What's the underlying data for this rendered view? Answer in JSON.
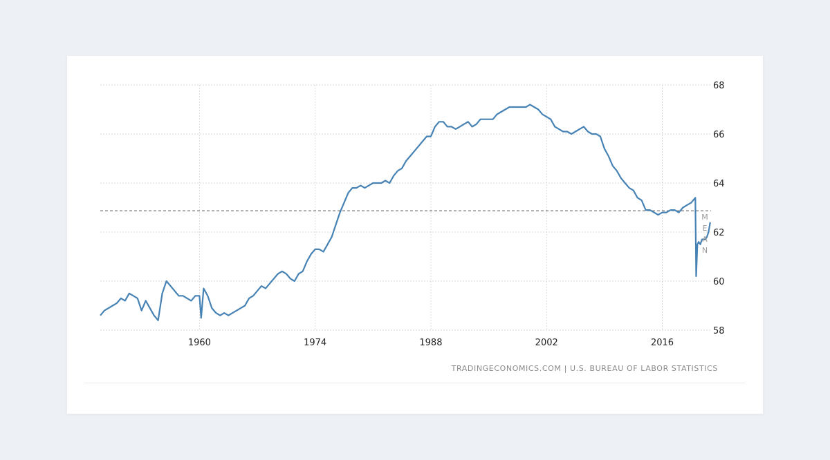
{
  "chart_data": {
    "type": "line",
    "title": "",
    "xlabel": "",
    "ylabel": "",
    "xlim": [
      1948,
      2021.9
    ],
    "ylim": [
      58,
      68
    ],
    "x_ticks": [
      1960,
      1974,
      1988,
      2002,
      2016
    ],
    "x_tick_labels": [
      "1960",
      "1974",
      "1988",
      "2002",
      "2016"
    ],
    "y_ticks": [
      58,
      60,
      62,
      64,
      66,
      68
    ],
    "y_tick_labels": [
      "58",
      "60",
      "62",
      "64",
      "66",
      "68"
    ],
    "grid": true,
    "y_axis_side": "right",
    "series": [
      {
        "color": "#4682b4",
        "x": [
          1948.0,
          1948.5,
          1949.0,
          1949.5,
          1950.0,
          1950.5,
          1951.0,
          1951.5,
          1952.0,
          1952.5,
          1953.0,
          1953.5,
          1954.0,
          1954.5,
          1955.0,
          1955.5,
          1956.0,
          1956.5,
          1957.0,
          1957.5,
          1958.0,
          1958.5,
          1959.0,
          1959.5,
          1960.0,
          1960.2,
          1960.5,
          1961.0,
          1961.5,
          1962.0,
          1962.5,
          1963.0,
          1963.5,
          1964.0,
          1964.5,
          1965.0,
          1965.5,
          1966.0,
          1966.5,
          1967.0,
          1967.5,
          1968.0,
          1968.5,
          1969.0,
          1969.5,
          1970.0,
          1970.5,
          1971.0,
          1971.5,
          1972.0,
          1972.5,
          1973.0,
          1973.5,
          1974.0,
          1974.5,
          1975.0,
          1975.5,
          1976.0,
          1976.5,
          1977.0,
          1977.5,
          1978.0,
          1978.5,
          1979.0,
          1979.5,
          1980.0,
          1980.5,
          1981.0,
          1981.5,
          1982.0,
          1982.5,
          1983.0,
          1983.5,
          1984.0,
          1984.5,
          1985.0,
          1985.5,
          1986.0,
          1986.5,
          1987.0,
          1987.5,
          1988.0,
          1988.5,
          1989.0,
          1989.5,
          1990.0,
          1990.5,
          1991.0,
          1991.5,
          1992.0,
          1992.5,
          1993.0,
          1993.5,
          1994.0,
          1994.5,
          1995.0,
          1995.5,
          1996.0,
          1996.5,
          1997.0,
          1997.5,
          1998.0,
          1998.5,
          1999.0,
          1999.5,
          2000.0,
          2000.5,
          2001.0,
          2001.5,
          2002.0,
          2002.5,
          2003.0,
          2003.5,
          2004.0,
          2004.5,
          2005.0,
          2005.5,
          2006.0,
          2006.5,
          2007.0,
          2007.5,
          2008.0,
          2008.5,
          2009.0,
          2009.5,
          2010.0,
          2010.5,
          2011.0,
          2011.5,
          2012.0,
          2012.5,
          2013.0,
          2013.5,
          2014.0,
          2014.5,
          2015.0,
          2015.5,
          2016.0,
          2016.5,
          2017.0,
          2017.5,
          2018.0,
          2018.5,
          2019.0,
          2019.5,
          2020.0,
          2020.1,
          2020.25,
          2020.4,
          2020.6,
          2020.8,
          2021.0,
          2021.2,
          2021.4,
          2021.6,
          2021.8
        ],
        "values": [
          58.6,
          58.8,
          58.9,
          59.0,
          59.1,
          59.3,
          59.2,
          59.5,
          59.4,
          59.3,
          58.8,
          59.2,
          58.9,
          58.6,
          58.4,
          59.5,
          60.0,
          59.8,
          59.6,
          59.4,
          59.4,
          59.3,
          59.2,
          59.4,
          59.4,
          58.5,
          59.7,
          59.4,
          58.9,
          58.7,
          58.6,
          58.7,
          58.6,
          58.7,
          58.8,
          58.9,
          59.0,
          59.3,
          59.4,
          59.6,
          59.8,
          59.7,
          59.9,
          60.1,
          60.3,
          60.4,
          60.3,
          60.1,
          60.0,
          60.3,
          60.4,
          60.8,
          61.1,
          61.3,
          61.3,
          61.2,
          61.5,
          61.8,
          62.3,
          62.8,
          63.2,
          63.6,
          63.8,
          63.8,
          63.9,
          63.8,
          63.9,
          64.0,
          64.0,
          64.0,
          64.1,
          64.0,
          64.3,
          64.5,
          64.6,
          64.9,
          65.1,
          65.3,
          65.5,
          65.7,
          65.9,
          65.9,
          66.3,
          66.5,
          66.5,
          66.3,
          66.3,
          66.2,
          66.3,
          66.4,
          66.5,
          66.3,
          66.4,
          66.6,
          66.6,
          66.6,
          66.6,
          66.8,
          66.9,
          67.0,
          67.1,
          67.1,
          67.1,
          67.1,
          67.1,
          67.2,
          67.1,
          67.0,
          66.8,
          66.7,
          66.6,
          66.3,
          66.2,
          66.1,
          66.1,
          66.0,
          66.1,
          66.2,
          66.3,
          66.1,
          66.0,
          66.0,
          65.9,
          65.4,
          65.1,
          64.7,
          64.5,
          64.2,
          64.0,
          63.8,
          63.7,
          63.4,
          63.3,
          62.9,
          62.9,
          62.8,
          62.7,
          62.8,
          62.8,
          62.9,
          62.9,
          62.8,
          63.0,
          63.1,
          63.2,
          63.4,
          60.2,
          61.5,
          61.6,
          61.5,
          61.7,
          61.7,
          61.7,
          61.8,
          62.0,
          62.4
        ]
      }
    ],
    "reference_lines": [
      {
        "axis": "y",
        "value": 62.87,
        "style": "dashed",
        "color": "#555555"
      }
    ],
    "annotations": [
      {
        "text": "M"
      },
      {
        "text": "E"
      },
      {
        "text": "A"
      },
      {
        "text": "N"
      }
    ]
  },
  "source_text": "TRADINGECONOMICS.COM  |  U.S. BUREAU OF LABOR STATISTICS"
}
